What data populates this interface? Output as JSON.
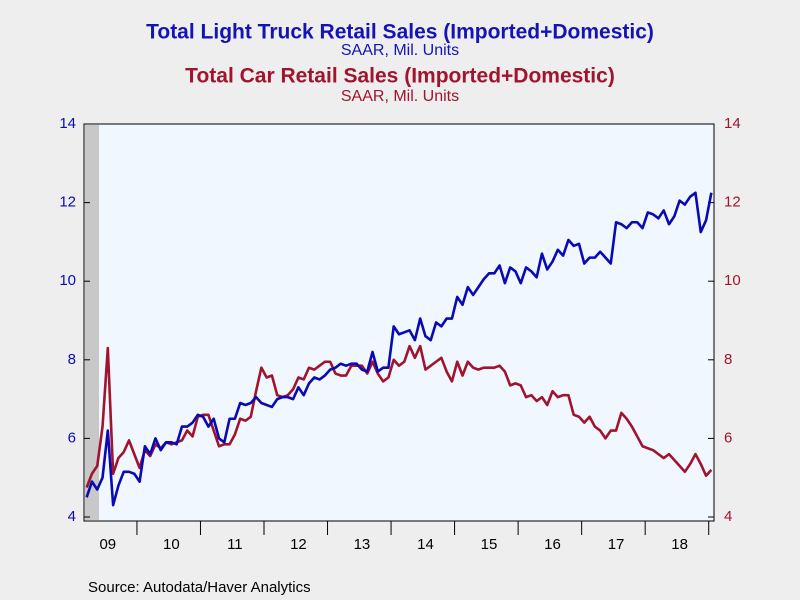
{
  "chart_data": {
    "type": "line",
    "titles": [
      {
        "text": "Total Light Truck Retail Sales (Imported+Domestic)",
        "subtitle": "SAAR, Mil. Units",
        "color": "#1414b4"
      },
      {
        "text": "Total Car Retail Sales (Imported+Domestic)",
        "subtitle": "SAAR, Mil. Units",
        "color": "#a0142e"
      }
    ],
    "source": "Source:  Autodata/Haver Analytics",
    "categories": [
      null,
      null,
      null,
      null,
      "09",
      null,
      null,
      null,
      null,
      null,
      null,
      null,
      null,
      null,
      null,
      null,
      "10",
      null,
      null,
      null,
      null,
      null,
      null,
      null,
      null,
      null,
      null,
      null,
      "11",
      null,
      null,
      null,
      null,
      null,
      null,
      null,
      null,
      null,
      null,
      null,
      "12",
      null,
      null,
      null,
      null,
      null,
      null,
      null,
      null,
      null,
      null,
      null,
      "13",
      null,
      null,
      null,
      null,
      null,
      null,
      null,
      null,
      null,
      null,
      null,
      "14",
      null,
      null,
      null,
      null,
      null,
      null,
      null,
      null,
      null,
      null,
      null,
      "15",
      null,
      null,
      null,
      null,
      null,
      null,
      null,
      null,
      null,
      null,
      null,
      "16",
      null,
      null,
      null,
      null,
      null,
      null,
      null,
      null,
      null,
      null,
      null,
      "17",
      null,
      null,
      null,
      null,
      null,
      null,
      null,
      null,
      null,
      null,
      null,
      "18",
      null,
      null,
      null,
      null,
      null,
      null
    ],
    "series": [
      {
        "name": "Total Light Truck Retail Sales (Imported+Domestic)",
        "color": "#0a0ab4",
        "axis": "y",
        "values": [
          4.5,
          4.9,
          4.7,
          5.0,
          6.2,
          4.3,
          4.8,
          5.15,
          5.15,
          5.1,
          4.9,
          5.8,
          5.6,
          6.0,
          5.7,
          5.9,
          5.9,
          5.85,
          6.3,
          6.3,
          6.4,
          6.6,
          6.55,
          6.3,
          6.5,
          6.0,
          5.9,
          6.5,
          6.5,
          6.9,
          6.85,
          6.9,
          7.05,
          6.9,
          6.85,
          6.8,
          7.0,
          7.05,
          7.05,
          7.0,
          7.3,
          7.1,
          7.4,
          7.55,
          7.5,
          7.6,
          7.75,
          7.8,
          7.9,
          7.85,
          7.9,
          7.9,
          7.75,
          7.7,
          8.2,
          7.7,
          7.8,
          7.8,
          8.85,
          8.65,
          8.7,
          8.75,
          8.5,
          9.05,
          8.6,
          8.5,
          8.95,
          8.85,
          9.05,
          9.05,
          9.6,
          9.4,
          9.85,
          9.65,
          9.85,
          10.05,
          10.2,
          10.2,
          10.4,
          9.95,
          10.35,
          10.25,
          9.95,
          10.35,
          10.25,
          10.1,
          10.7,
          10.3,
          10.5,
          10.8,
          10.65,
          11.05,
          10.9,
          10.95,
          10.45,
          10.6,
          10.6,
          10.75,
          10.6,
          10.45,
          11.5,
          11.45,
          11.35,
          11.5,
          11.5,
          11.35,
          11.75,
          11.7,
          11.6,
          11.8,
          11.45,
          11.65,
          12.05,
          11.95,
          12.15,
          12.25,
          11.25,
          11.55,
          12.25
        ]
      },
      {
        "name": "Total Car Retail Sales (Imported+Domestic)",
        "color": "#a0142e",
        "axis": "y2",
        "values": [
          4.75,
          5.1,
          5.3,
          6.3,
          8.3,
          5.1,
          5.5,
          5.65,
          5.95,
          5.6,
          5.25,
          5.7,
          5.55,
          5.85,
          5.75,
          5.9,
          5.85,
          5.9,
          5.95,
          6.2,
          6.05,
          6.55,
          6.6,
          6.6,
          6.2,
          5.8,
          5.85,
          5.85,
          6.1,
          6.5,
          6.45,
          6.55,
          7.2,
          7.8,
          7.55,
          7.6,
          7.1,
          7.05,
          7.1,
          7.25,
          7.55,
          7.5,
          7.8,
          7.75,
          7.85,
          7.95,
          7.95,
          7.65,
          7.6,
          7.6,
          7.85,
          7.85,
          7.85,
          7.65,
          7.95,
          7.65,
          7.45,
          7.55,
          8.0,
          7.85,
          7.95,
          8.35,
          8.05,
          8.35,
          7.75,
          7.85,
          7.95,
          8.05,
          7.7,
          7.45,
          7.95,
          7.6,
          7.95,
          7.8,
          7.75,
          7.8,
          7.8,
          7.8,
          7.85,
          7.7,
          7.35,
          7.4,
          7.35,
          7.05,
          7.1,
          6.95,
          7.05,
          6.85,
          7.2,
          7.05,
          7.1,
          7.1,
          6.6,
          6.55,
          6.4,
          6.55,
          6.3,
          6.2,
          6.0,
          6.2,
          6.2,
          6.65,
          6.5,
          6.3,
          6.05,
          5.8,
          5.75,
          5.7,
          5.6,
          5.5,
          5.6,
          5.45,
          5.3,
          5.15,
          5.35,
          5.6,
          5.35,
          5.05,
          5.2
        ]
      }
    ],
    "ylim": [
      4,
      14
    ],
    "yticks": [
      4,
      6,
      8,
      10,
      12,
      14
    ],
    "y2lim": [
      4,
      14
    ],
    "y2ticks": [
      4,
      6,
      8,
      10,
      12,
      14
    ],
    "grid": false
  }
}
